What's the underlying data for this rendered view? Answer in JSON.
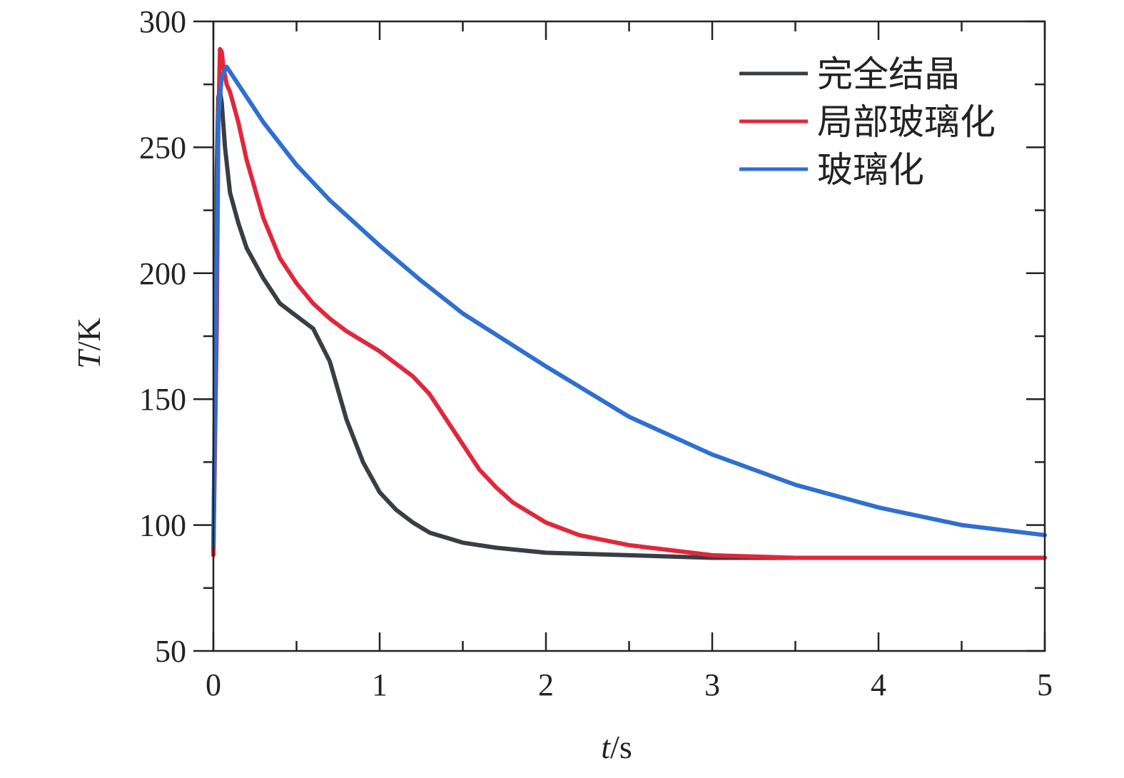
{
  "chart_data": {
    "type": "line",
    "xlabel": {
      "var": "t",
      "unit": "/s"
    },
    "ylabel": {
      "var": "T",
      "unit": "/K"
    },
    "xlim": [
      0,
      5
    ],
    "ylim": [
      50,
      300
    ],
    "xticks": [
      0,
      1,
      2,
      3,
      4,
      5
    ],
    "yticks": [
      50,
      100,
      150,
      200,
      250,
      300
    ],
    "xminor_step": 0.5,
    "yminor_step": 25,
    "grid": false,
    "legend": {
      "position": "top-right"
    },
    "series": [
      {
        "name": "完全结晶",
        "color": "#3a3d45",
        "x": [
          0.0,
          0.01,
          0.02,
          0.03,
          0.04,
          0.05,
          0.07,
          0.1,
          0.15,
          0.2,
          0.3,
          0.4,
          0.5,
          0.6,
          0.7,
          0.8,
          0.9,
          1.0,
          1.1,
          1.2,
          1.3,
          1.4,
          1.5,
          1.7,
          2.0,
          2.5,
          3.0,
          3.5,
          4.0,
          4.5,
          5.0
        ],
        "y": [
          90,
          150,
          240,
          270,
          272,
          268,
          250,
          232,
          220,
          210,
          198,
          188,
          183,
          178,
          165,
          142,
          125,
          113,
          106,
          101,
          97,
          95,
          93,
          91,
          89,
          88,
          87,
          87,
          87,
          87,
          87
        ]
      },
      {
        "name": "局部玻璃化",
        "color": "#e0283a",
        "x": [
          0.0,
          0.02,
          0.03,
          0.04,
          0.05,
          0.06,
          0.08,
          0.1,
          0.15,
          0.2,
          0.3,
          0.4,
          0.5,
          0.6,
          0.7,
          0.8,
          0.9,
          1.0,
          1.1,
          1.2,
          1.3,
          1.4,
          1.5,
          1.6,
          1.7,
          1.8,
          2.0,
          2.2,
          2.5,
          3.0,
          3.5,
          4.0,
          4.5,
          5.0
        ],
        "y": [
          88,
          180,
          260,
          289,
          288,
          282,
          275,
          272,
          260,
          245,
          222,
          206,
          196,
          188,
          182,
          177,
          173,
          169,
          164,
          159,
          152,
          142,
          132,
          122,
          115,
          109,
          101,
          96,
          92,
          88,
          87,
          87,
          87,
          87
        ]
      },
      {
        "name": "玻璃化",
        "color": "#2f6fd0",
        "x": [
          0.0,
          0.02,
          0.03,
          0.05,
          0.08,
          0.1,
          0.2,
          0.3,
          0.5,
          0.7,
          1.0,
          1.25,
          1.5,
          2.0,
          2.5,
          3.0,
          3.5,
          4.0,
          4.5,
          5.0
        ],
        "y": [
          92,
          210,
          262,
          278,
          282,
          280,
          270,
          260,
          243,
          229,
          211,
          197,
          184,
          163,
          143,
          128,
          116,
          107,
          100,
          96
        ]
      }
    ]
  }
}
